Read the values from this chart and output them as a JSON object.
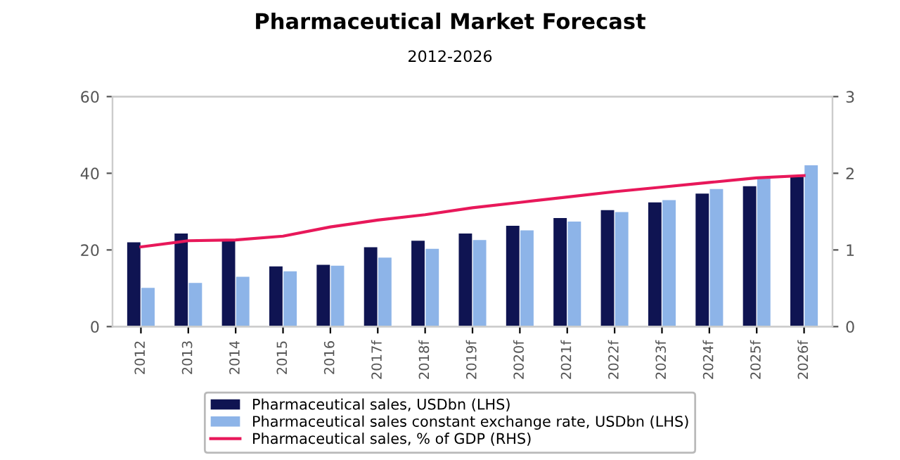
{
  "chart_data": {
    "type": "bar",
    "title": "Pharmaceutical Market Forecast",
    "subtitle": "2012-2026",
    "categories": [
      "2012",
      "2013",
      "2014",
      "2015",
      "2016",
      "2017f",
      "2018f",
      "2019f",
      "2020f",
      "2021f",
      "2022f",
      "2023f",
      "2024f",
      "2025f",
      "2026f"
    ],
    "series": [
      {
        "name": "Pharmaceutical sales, USDbn (LHS)",
        "color": "#0f1452",
        "values": [
          22.0,
          24.3,
          22.6,
          15.7,
          16.1,
          20.7,
          22.4,
          24.3,
          26.3,
          28.3,
          30.4,
          32.4,
          34.7,
          36.6,
          39.1
        ]
      },
      {
        "name": "Pharmaceutical sales constant exchange rate, USDbn (LHS)",
        "color": "#8db4e8",
        "values": [
          10.1,
          11.4,
          13.0,
          14.4,
          15.9,
          18.0,
          20.3,
          22.6,
          25.1,
          27.4,
          29.9,
          33.0,
          35.9,
          38.7,
          42.1
        ]
      },
      {
        "name": "Pharmaceutical sales, % of GDP (RHS)",
        "color": "#e8185a",
        "type": "line",
        "axis": "y2",
        "values": [
          1.04,
          1.12,
          1.13,
          1.18,
          1.3,
          1.39,
          1.46,
          1.55,
          1.62,
          1.69,
          1.76,
          1.82,
          1.88,
          1.94,
          1.97
        ]
      }
    ],
    "ylim": [
      0,
      60
    ],
    "yticks": [
      0,
      20,
      40,
      60
    ],
    "y2lim": [
      0,
      3
    ],
    "y2ticks": [
      0,
      1,
      2,
      3
    ],
    "legend": "bottom",
    "marker": "none",
    "grid": false
  }
}
